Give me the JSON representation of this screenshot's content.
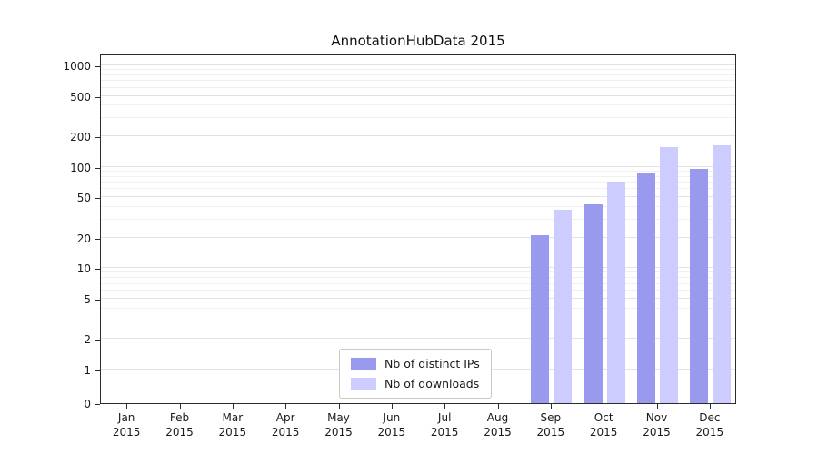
{
  "title": "AnnotationHubData 2015",
  "colors": {
    "ips": "#9999ee",
    "downloads": "#ccccff",
    "grid_major": "#e3e3e3",
    "grid_minor": "#f0f0f0",
    "axis": "#2b2b2b"
  },
  "legend": {
    "items": [
      {
        "label": "Nb of distinct IPs",
        "color": "#9999ee"
      },
      {
        "label": "Nb of downloads",
        "color": "#ccccff"
      }
    ]
  },
  "y_axis": {
    "ticks": [
      0,
      1,
      2,
      5,
      10,
      20,
      50,
      100,
      200,
      500,
      1000
    ],
    "minor_ticks": [
      3,
      4,
      6,
      7,
      8,
      9,
      30,
      40,
      60,
      70,
      80,
      90,
      300,
      400,
      600,
      700,
      800,
      900
    ]
  },
  "x_axis": {
    "months": [
      "Jan",
      "Feb",
      "Mar",
      "Apr",
      "May",
      "Jun",
      "Jul",
      "Aug",
      "Sep",
      "Oct",
      "Nov",
      "Dec"
    ],
    "year": "2015"
  },
  "chart_data": {
    "type": "bar",
    "title": "AnnotationHubData 2015",
    "categories": [
      "Jan 2015",
      "Feb 2015",
      "Mar 2015",
      "Apr 2015",
      "May 2015",
      "Jun 2015",
      "Jul 2015",
      "Aug 2015",
      "Sep 2015",
      "Oct 2015",
      "Nov 2015",
      "Dec 2015"
    ],
    "series": [
      {
        "name": "Nb of distinct IPs",
        "color": "#9999ee",
        "values": [
          0,
          0,
          0,
          0,
          0,
          0,
          0,
          0,
          21,
          43,
          87,
          95
        ]
      },
      {
        "name": "Nb of downloads",
        "color": "#ccccff",
        "values": [
          0,
          0,
          0,
          0,
          0,
          0,
          0,
          0,
          38,
          72,
          155,
          162
        ]
      }
    ],
    "xlabel": "",
    "ylabel": "",
    "yscale": "symlog",
    "y_ticks": [
      0,
      1,
      2,
      5,
      10,
      20,
      50,
      100,
      200,
      500,
      1000
    ],
    "ylim": [
      0,
      1300
    ],
    "grid": "horizontal",
    "legend_position": "lower center"
  }
}
